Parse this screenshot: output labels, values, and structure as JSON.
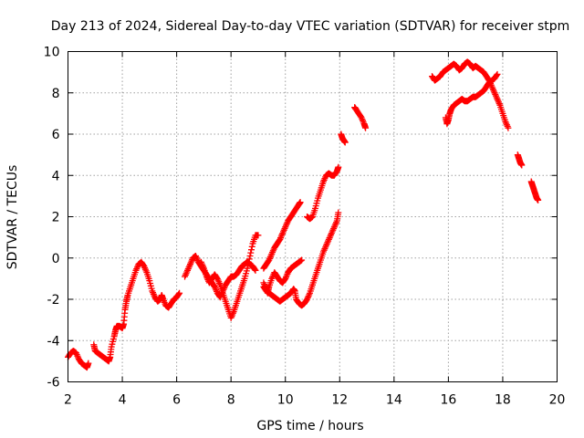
{
  "chart_data": {
    "type": "scatter",
    "title": "Day 213 of 2024, Sidereal Day-to-day VTEC variation (SDTVAR) for receiver stpm",
    "xlabel": "GPS time / hours",
    "ylabel": "SDTVAR / TECUs",
    "xlim": [
      2,
      20
    ],
    "ylim": [
      -6,
      10
    ],
    "xticks": [
      "2",
      "4",
      "6",
      "8",
      "10",
      "12",
      "14",
      "16",
      "18",
      "20"
    ],
    "yticks": [
      "-6",
      "-4",
      "-2",
      "0",
      "2",
      "4",
      "6",
      "8",
      "10"
    ],
    "grid": true,
    "marker": "+",
    "marker_color": "#ff0000",
    "series": [
      {
        "name": "seg1",
        "points": [
          [
            2.0,
            -4.8
          ],
          [
            2.1,
            -4.6
          ],
          [
            2.2,
            -4.5
          ],
          [
            2.3,
            -4.6
          ],
          [
            2.4,
            -4.9
          ],
          [
            2.5,
            -5.1
          ],
          [
            2.6,
            -5.2
          ],
          [
            2.7,
            -5.3
          ],
          [
            2.75,
            -5.1
          ]
        ]
      },
      {
        "name": "seg2",
        "points": [
          [
            2.95,
            -4.2
          ],
          [
            3.0,
            -4.5
          ],
          [
            3.1,
            -4.6
          ],
          [
            3.2,
            -4.7
          ],
          [
            3.3,
            -4.8
          ],
          [
            3.4,
            -4.9
          ],
          [
            3.5,
            -5.0
          ],
          [
            3.55,
            -4.8
          ],
          [
            3.6,
            -4.3
          ],
          [
            3.7,
            -3.8
          ],
          [
            3.75,
            -3.5
          ],
          [
            3.8,
            -3.3
          ],
          [
            3.9,
            -3.3
          ],
          [
            4.0,
            -3.4
          ],
          [
            4.05,
            -3.2
          ],
          [
            4.1,
            -2.5
          ],
          [
            4.15,
            -2.1
          ],
          [
            4.2,
            -1.8
          ],
          [
            4.3,
            -1.4
          ],
          [
            4.4,
            -1.0
          ],
          [
            4.5,
            -0.6
          ],
          [
            4.6,
            -0.3
          ],
          [
            4.7,
            -0.2
          ],
          [
            4.8,
            -0.4
          ],
          [
            4.9,
            -0.7
          ],
          [
            5.0,
            -1.1
          ],
          [
            5.1,
            -1.6
          ],
          [
            5.2,
            -1.9
          ],
          [
            5.3,
            -2.1
          ],
          [
            5.4,
            -2.0
          ],
          [
            5.45,
            -1.8
          ],
          [
            5.5,
            -2.0
          ],
          [
            5.6,
            -2.3
          ],
          [
            5.7,
            -2.4
          ],
          [
            5.8,
            -2.2
          ],
          [
            5.9,
            -2.0
          ],
          [
            6.0,
            -1.9
          ],
          [
            6.1,
            -1.7
          ]
        ]
      },
      {
        "name": "seg3",
        "points": [
          [
            6.3,
            -0.9
          ],
          [
            6.4,
            -0.6
          ],
          [
            6.5,
            -0.3
          ],
          [
            6.6,
            0.0
          ],
          [
            6.7,
            0.1
          ],
          [
            6.8,
            -0.2
          ],
          [
            6.9,
            -0.4
          ],
          [
            7.0,
            -0.6
          ],
          [
            7.1,
            -0.8
          ],
          [
            7.2,
            -1.0
          ],
          [
            7.3,
            -1.2
          ],
          [
            7.4,
            -1.4
          ],
          [
            7.5,
            -1.7
          ],
          [
            7.6,
            -1.9
          ],
          [
            7.7,
            -1.6
          ],
          [
            7.8,
            -1.3
          ],
          [
            7.9,
            -1.1
          ],
          [
            8.0,
            -0.9
          ],
          [
            8.1,
            -0.9
          ],
          [
            8.2,
            -0.8
          ],
          [
            8.3,
            -0.6
          ],
          [
            8.4,
            -0.4
          ],
          [
            8.5,
            -0.3
          ],
          [
            8.6,
            -0.2
          ],
          [
            8.7,
            -0.3
          ],
          [
            8.8,
            -0.4
          ],
          [
            8.9,
            -0.6
          ]
        ]
      },
      {
        "name": "seg4",
        "points": [
          [
            6.9,
            -0.2
          ],
          [
            7.0,
            -0.5
          ],
          [
            7.1,
            -0.9
          ],
          [
            7.2,
            -1.2
          ],
          [
            7.3,
            -1.0
          ],
          [
            7.4,
            -0.8
          ],
          [
            7.5,
            -1.0
          ],
          [
            7.6,
            -1.3
          ],
          [
            7.7,
            -1.7
          ],
          [
            7.8,
            -2.1
          ],
          [
            7.9,
            -2.5
          ],
          [
            8.0,
            -2.9
          ],
          [
            8.1,
            -2.6
          ],
          [
            8.2,
            -2.2
          ],
          [
            8.3,
            -1.8
          ],
          [
            8.4,
            -1.4
          ],
          [
            8.5,
            -1.0
          ],
          [
            8.6,
            -0.5
          ],
          [
            8.7,
            0.1
          ],
          [
            8.8,
            0.7
          ],
          [
            8.9,
            1.1
          ],
          [
            9.0,
            1.1
          ]
        ]
      },
      {
        "name": "seg5",
        "points": [
          [
            9.2,
            -1.4
          ],
          [
            9.3,
            -1.6
          ],
          [
            9.4,
            -1.7
          ],
          [
            9.5,
            -1.8
          ],
          [
            9.6,
            -1.9
          ],
          [
            9.7,
            -2.0
          ],
          [
            9.8,
            -2.1
          ],
          [
            9.9,
            -2.0
          ],
          [
            10.0,
            -1.9
          ],
          [
            10.1,
            -1.8
          ],
          [
            10.2,
            -1.7
          ],
          [
            10.3,
            -1.5
          ],
          [
            10.35,
            -1.6
          ],
          [
            10.4,
            -2.0
          ],
          [
            10.5,
            -2.2
          ],
          [
            10.6,
            -2.3
          ],
          [
            10.7,
            -2.2
          ],
          [
            10.8,
            -2.0
          ],
          [
            10.9,
            -1.7
          ],
          [
            11.0,
            -1.3
          ],
          [
            11.1,
            -0.9
          ],
          [
            11.2,
            -0.5
          ],
          [
            11.3,
            -0.1
          ],
          [
            11.4,
            0.3
          ],
          [
            11.5,
            0.6
          ],
          [
            11.6,
            0.9
          ],
          [
            11.7,
            1.2
          ],
          [
            11.8,
            1.5
          ],
          [
            11.9,
            1.8
          ],
          [
            11.95,
            2.2
          ]
        ]
      },
      {
        "name": "seg6",
        "points": [
          [
            9.2,
            -0.5
          ],
          [
            9.3,
            -0.3
          ],
          [
            9.4,
            -0.1
          ],
          [
            9.5,
            0.2
          ],
          [
            9.6,
            0.5
          ],
          [
            9.7,
            0.7
          ],
          [
            9.8,
            0.9
          ],
          [
            9.9,
            1.2
          ],
          [
            10.0,
            1.5
          ],
          [
            10.1,
            1.8
          ],
          [
            10.2,
            2.0
          ],
          [
            10.3,
            2.2
          ],
          [
            10.4,
            2.4
          ],
          [
            10.5,
            2.6
          ],
          [
            10.55,
            2.7
          ]
        ]
      },
      {
        "name": "seg7",
        "points": [
          [
            9.2,
            -1.2
          ],
          [
            9.3,
            -1.5
          ],
          [
            9.35,
            -1.7
          ],
          [
            9.4,
            -1.4
          ],
          [
            9.5,
            -1.0
          ],
          [
            9.6,
            -0.7
          ],
          [
            9.7,
            -0.9
          ],
          [
            9.8,
            -1.1
          ],
          [
            9.9,
            -1.2
          ],
          [
            10.0,
            -1.0
          ],
          [
            10.1,
            -0.7
          ],
          [
            10.2,
            -0.5
          ],
          [
            10.3,
            -0.4
          ],
          [
            10.4,
            -0.3
          ],
          [
            10.5,
            -0.2
          ],
          [
            10.6,
            -0.1
          ]
        ]
      },
      {
        "name": "seg8",
        "points": [
          [
            10.8,
            2.0
          ],
          [
            10.9,
            1.9
          ],
          [
            11.0,
            2.0
          ],
          [
            11.1,
            2.4
          ],
          [
            11.2,
            2.9
          ],
          [
            11.3,
            3.3
          ],
          [
            11.4,
            3.7
          ],
          [
            11.5,
            4.0
          ],
          [
            11.6,
            4.1
          ],
          [
            11.7,
            4.0
          ],
          [
            11.8,
            4.0
          ],
          [
            11.9,
            4.2
          ],
          [
            11.95,
            4.4
          ]
        ]
      },
      {
        "name": "seg9",
        "points": [
          [
            12.05,
            6.0
          ],
          [
            12.1,
            5.8
          ],
          [
            12.15,
            5.7
          ],
          [
            12.2,
            5.6
          ]
        ]
      },
      {
        "name": "seg10",
        "points": [
          [
            12.55,
            7.3
          ],
          [
            12.6,
            7.2
          ],
          [
            12.7,
            7.0
          ],
          [
            12.8,
            6.8
          ],
          [
            12.9,
            6.5
          ],
          [
            12.95,
            6.3
          ]
        ]
      },
      {
        "name": "seg11",
        "points": [
          [
            15.4,
            8.8
          ],
          [
            15.5,
            8.6
          ],
          [
            15.6,
            8.7
          ],
          [
            15.7,
            8.8
          ],
          [
            15.8,
            9.0
          ],
          [
            15.9,
            9.1
          ],
          [
            16.0,
            9.2
          ],
          [
            16.1,
            9.3
          ],
          [
            16.2,
            9.4
          ],
          [
            16.3,
            9.3
          ],
          [
            16.4,
            9.1
          ],
          [
            16.5,
            9.2
          ],
          [
            16.6,
            9.4
          ],
          [
            16.7,
            9.5
          ],
          [
            16.8,
            9.4
          ],
          [
            16.9,
            9.2
          ],
          [
            17.0,
            9.3
          ],
          [
            17.1,
            9.2
          ],
          [
            17.2,
            9.1
          ],
          [
            17.3,
            9.0
          ],
          [
            17.4,
            8.8
          ],
          [
            17.5,
            8.6
          ],
          [
            17.6,
            8.3
          ],
          [
            17.7,
            8.0
          ],
          [
            17.8,
            7.7
          ],
          [
            17.9,
            7.4
          ],
          [
            18.0,
            7.0
          ],
          [
            18.1,
            6.6
          ],
          [
            18.2,
            6.3
          ]
        ]
      },
      {
        "name": "seg12",
        "points": [
          [
            15.9,
            6.8
          ],
          [
            15.95,
            6.5
          ],
          [
            16.0,
            6.7
          ],
          [
            16.05,
            7.0
          ],
          [
            16.1,
            7.2
          ],
          [
            16.2,
            7.4
          ],
          [
            16.3,
            7.5
          ],
          [
            16.4,
            7.6
          ],
          [
            16.5,
            7.7
          ],
          [
            16.6,
            7.6
          ],
          [
            16.7,
            7.6
          ],
          [
            16.8,
            7.7
          ],
          [
            16.9,
            7.8
          ],
          [
            17.0,
            7.8
          ],
          [
            17.1,
            7.9
          ],
          [
            17.2,
            8.0
          ],
          [
            17.3,
            8.1
          ],
          [
            17.4,
            8.3
          ],
          [
            17.5,
            8.5
          ],
          [
            17.6,
            8.6
          ],
          [
            17.7,
            8.7
          ],
          [
            17.8,
            8.9
          ]
        ]
      },
      {
        "name": "seg13",
        "points": [
          [
            18.55,
            5.0
          ],
          [
            18.6,
            4.8
          ],
          [
            18.65,
            4.6
          ],
          [
            18.7,
            4.5
          ]
        ]
      },
      {
        "name": "seg14",
        "points": [
          [
            19.05,
            3.7
          ],
          [
            19.1,
            3.5
          ],
          [
            19.15,
            3.3
          ],
          [
            19.2,
            3.1
          ],
          [
            19.25,
            2.9
          ],
          [
            19.3,
            2.8
          ]
        ]
      }
    ]
  }
}
